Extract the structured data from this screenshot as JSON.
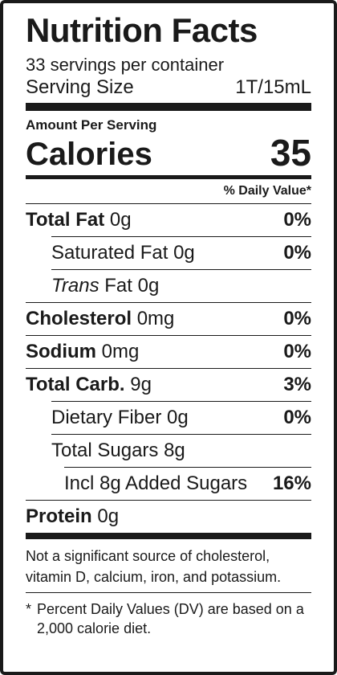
{
  "title": "Nutrition Facts",
  "servings_per_container": "33 servings per container",
  "serving_size": {
    "label": "Serving Size",
    "value": "1T/15mL"
  },
  "amount_per_serving": "Amount Per Serving",
  "calories": {
    "label": "Calories",
    "value": "35"
  },
  "daily_value_header": "% Daily Value*",
  "nutrients": {
    "total_fat": {
      "name": "Total Fat",
      "amount": "0g",
      "dv": "0%"
    },
    "saturated_fat": {
      "name": "Saturated Fat 0g",
      "dv": "0%"
    },
    "trans_fat": {
      "name_italic": "Trans",
      "name_rest": "Fat 0g"
    },
    "cholesterol": {
      "name": "Cholesterol",
      "amount": "0mg",
      "dv": "0%"
    },
    "sodium": {
      "name": "Sodium",
      "amount": "0mg",
      "dv": "0%"
    },
    "total_carb": {
      "name": "Total Carb.",
      "amount": "9g",
      "dv": "3%"
    },
    "dietary_fiber": {
      "name": "Dietary Fiber 0g",
      "dv": "0%"
    },
    "total_sugars": {
      "name": "Total Sugars 8g"
    },
    "added_sugars": {
      "name": "Incl 8g Added Sugars",
      "dv": "16%"
    },
    "protein": {
      "name": "Protein",
      "amount": "0g"
    }
  },
  "footnote_source": "Not a significant source of cholesterol, vitamin D, calcium, iron, and potassium.",
  "footnote_dv": {
    "mark": "*",
    "text": "Percent Daily Values (DV) are based on a 2,000 calorie diet."
  }
}
